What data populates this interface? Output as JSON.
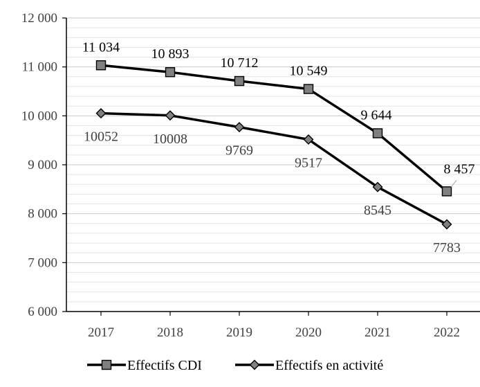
{
  "chart_data": {
    "type": "line",
    "x": [
      "2017",
      "2018",
      "2019",
      "2020",
      "2021",
      "2022"
    ],
    "ylim": [
      6000,
      12000
    ],
    "y_ticks": [
      {
        "value": 6000,
        "label": "6 000"
      },
      {
        "value": 7000,
        "label": "7 000"
      },
      {
        "value": 8000,
        "label": "8 000"
      },
      {
        "value": 9000,
        "label": "9 000"
      },
      {
        "value": 10000,
        "label": "10 000"
      },
      {
        "value": 11000,
        "label": "11 000"
      },
      {
        "value": 12000,
        "label": "12 000"
      }
    ],
    "minor_grid_step": 200,
    "grid": true,
    "legend_position": "bottom",
    "series": [
      {
        "name": "Effectifs CDI",
        "marker": "square",
        "color": "#000000",
        "marker_fill": "#808080",
        "values": [
          11034,
          10893,
          10712,
          10549,
          9644,
          8457
        ],
        "labels": [
          "11 034",
          "10 893",
          "10 712",
          "10 549",
          "9 644",
          "8 457"
        ],
        "label_color": "#000000"
      },
      {
        "name": "Effectifs en activité",
        "marker": "diamond",
        "color": "#000000",
        "marker_fill": "#808080",
        "values": [
          10052,
          10008,
          9769,
          9517,
          8545,
          7783
        ],
        "labels": [
          "10052",
          "10008",
          "9769",
          "9517",
          "8545",
          "7783"
        ],
        "label_color": "#404040"
      }
    ]
  }
}
